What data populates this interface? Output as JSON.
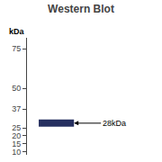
{
  "chart_data": {
    "type": "blot",
    "title": "Western Blot",
    "ylabel": "kDa",
    "values": [
      28
    ],
    "value_labels": [
      "28kDa"
    ],
    "data_labels": true,
    "color": "#263060",
    "ylim": [
      8,
      82
    ],
    "yticks": [
      10,
      15,
      20,
      25,
      37,
      50,
      75
    ],
    "tick_labels": "y",
    "grid": false
  }
}
